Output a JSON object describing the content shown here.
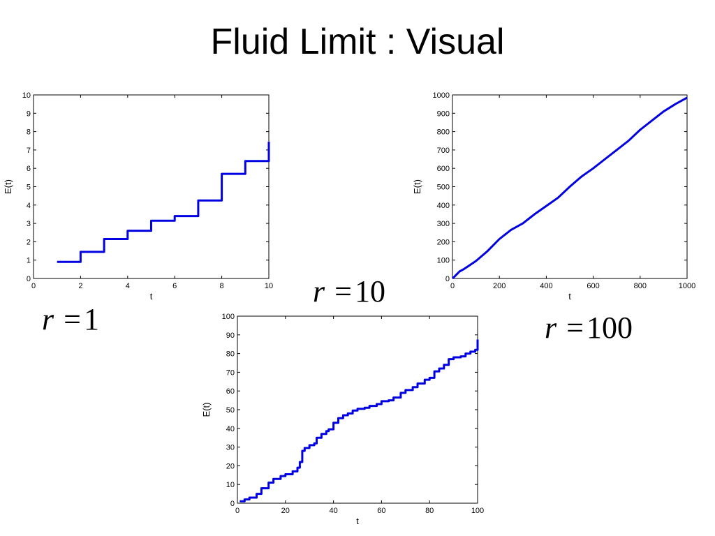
{
  "slide": {
    "title": "Fluid Limit : Visual"
  },
  "annotations": [
    {
      "var": "r",
      "op": "=",
      "value": "1"
    },
    {
      "var": "r",
      "op": "=",
      "value": "10"
    },
    {
      "var": "r",
      "op": "=",
      "value": "100"
    }
  ],
  "chart_data": [
    {
      "type": "line",
      "style": "step",
      "xlabel": "t",
      "ylabel": "E(t)",
      "xlim": [
        0,
        10
      ],
      "ylim": [
        0,
        10
      ],
      "xticks": [
        0,
        2,
        4,
        6,
        8,
        10
      ],
      "yticks": [
        0,
        1,
        2,
        3,
        4,
        5,
        6,
        7,
        8,
        9,
        10
      ],
      "grid": false,
      "color": "#0000e0",
      "series": [
        {
          "x": [
            1,
            2,
            2,
            3,
            3,
            4,
            4,
            5,
            5,
            6,
            6,
            7,
            7,
            8,
            8,
            9,
            9,
            10,
            10
          ],
          "y": [
            0.9,
            0.9,
            1.45,
            1.45,
            2.15,
            2.15,
            2.6,
            2.6,
            3.15,
            3.15,
            3.4,
            3.4,
            4.25,
            4.25,
            5.7,
            5.7,
            6.4,
            6.4,
            7.45
          ]
        }
      ]
    },
    {
      "type": "line",
      "style": "line",
      "xlabel": "t",
      "ylabel": "E(t)",
      "xlim": [
        0,
        1000
      ],
      "ylim": [
        0,
        1000
      ],
      "xticks": [
        0,
        200,
        400,
        600,
        800,
        1000
      ],
      "yticks": [
        0,
        100,
        200,
        300,
        400,
        500,
        600,
        700,
        800,
        900,
        1000
      ],
      "grid": false,
      "color": "#0000e0",
      "series": [
        {
          "x": [
            0,
            10,
            20,
            30,
            50,
            100,
            150,
            200,
            250,
            300,
            350,
            400,
            450,
            500,
            550,
            600,
            650,
            700,
            750,
            800,
            850,
            900,
            950,
            1000
          ],
          "y": [
            0,
            12,
            25,
            38,
            52,
            95,
            150,
            215,
            265,
            300,
            350,
            395,
            440,
            500,
            555,
            600,
            650,
            700,
            750,
            810,
            860,
            910,
            950,
            985
          ]
        }
      ]
    },
    {
      "type": "line",
      "style": "line",
      "xlabel": "t",
      "ylabel": "E(t)",
      "xlim": [
        0,
        100
      ],
      "ylim": [
        0,
        100
      ],
      "xticks": [
        0,
        20,
        40,
        60,
        80,
        100
      ],
      "yticks": [
        0,
        10,
        20,
        30,
        40,
        50,
        60,
        70,
        80,
        90,
        100
      ],
      "grid": false,
      "color": "#0000e0",
      "series": [
        {
          "x": [
            1,
            3,
            5,
            8,
            10,
            13,
            15,
            18,
            20,
            23,
            25,
            26,
            27,
            28,
            30,
            32,
            33,
            35,
            37,
            38,
            40,
            42,
            44,
            46,
            48,
            50,
            53,
            55,
            58,
            60,
            63,
            65,
            68,
            70,
            73,
            75,
            78,
            80,
            82,
            84,
            86,
            88,
            90,
            93,
            95,
            97,
            99,
            100,
            100
          ],
          "y": [
            1,
            2,
            3,
            5,
            8,
            11,
            13,
            14.5,
            15.5,
            17,
            19,
            22,
            28,
            29.5,
            31,
            32,
            35,
            37,
            38.5,
            39.5,
            43,
            45.5,
            47,
            48,
            49.5,
            50.5,
            51,
            52,
            53,
            54.5,
            55,
            56.5,
            59,
            60.5,
            62,
            64,
            66,
            67,
            70.5,
            72,
            74,
            77,
            78,
            78.5,
            80,
            81,
            82,
            82.5,
            87.5
          ]
        }
      ]
    }
  ]
}
